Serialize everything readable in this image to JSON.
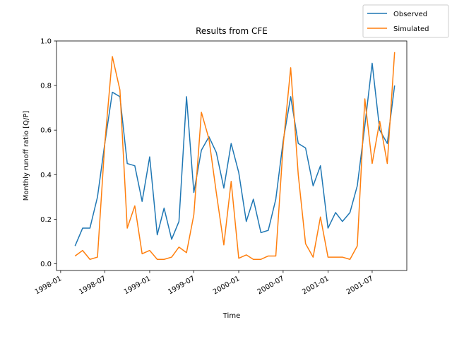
{
  "chart_data": {
    "type": "line",
    "title": "Results from CFE",
    "xlabel": "Time",
    "ylabel": "Monthly runoff ratio [Q/P]",
    "x_axis_kind": "date",
    "xlim": [
      "1997-12-15",
      "2001-11-20"
    ],
    "ylim": [
      -0.03,
      1.0
    ],
    "x_ticks": [
      "1998-01",
      "1998-07",
      "1999-01",
      "1999-07",
      "2000-01",
      "2000-07",
      "2001-01",
      "2001-07"
    ],
    "y_ticks": [
      "0.0",
      "0.2",
      "0.4",
      "0.6",
      "0.8",
      "1.0"
    ],
    "grid": false,
    "legend_location": "top-right",
    "x": [
      "1998-03",
      "1998-04",
      "1998-05",
      "1998-06",
      "1998-07",
      "1998-08",
      "1998-09",
      "1998-10",
      "1998-11",
      "1998-12",
      "1999-01",
      "1999-02",
      "1999-03",
      "1999-04",
      "1999-05",
      "1999-06",
      "1999-07",
      "1999-08",
      "1999-09",
      "1999-10",
      "1999-11",
      "1999-12",
      "2000-01",
      "2000-02",
      "2000-03",
      "2000-04",
      "2000-05",
      "2000-06",
      "2000-07",
      "2000-08",
      "2000-09",
      "2000-10",
      "2000-11",
      "2000-12",
      "2001-01",
      "2001-02",
      "2001-03",
      "2001-04",
      "2001-05",
      "2001-06",
      "2001-07",
      "2001-08",
      "2001-09",
      "2001-10"
    ],
    "series": [
      {
        "name": "Observed",
        "color": "#1f77b4",
        "values": [
          0.08,
          0.16,
          0.16,
          0.3,
          0.54,
          0.77,
          0.75,
          0.45,
          0.44,
          0.28,
          0.48,
          0.13,
          0.25,
          0.11,
          0.19,
          0.75,
          0.32,
          0.51,
          0.57,
          0.5,
          0.34,
          0.54,
          0.41,
          0.19,
          0.29,
          0.14,
          0.15,
          0.29,
          0.55,
          0.75,
          0.54,
          0.52,
          0.35,
          0.44,
          0.16,
          0.23,
          0.19,
          0.23,
          0.35,
          0.62,
          0.9,
          0.6,
          0.54,
          0.8
        ]
      },
      {
        "name": "Simulated",
        "color": "#ff7f0e",
        "values": [
          0.035,
          0.06,
          0.02,
          0.03,
          0.54,
          0.93,
          0.78,
          0.16,
          0.26,
          0.045,
          0.06,
          0.02,
          0.02,
          0.03,
          0.075,
          0.05,
          0.22,
          0.68,
          0.56,
          0.32,
          0.085,
          0.37,
          0.025,
          0.04,
          0.02,
          0.02,
          0.035,
          0.035,
          0.53,
          0.88,
          0.4,
          0.09,
          0.03,
          0.21,
          0.03,
          0.03,
          0.03,
          0.02,
          0.08,
          0.74,
          0.45,
          0.64,
          0.45,
          0.95
        ]
      }
    ]
  }
}
